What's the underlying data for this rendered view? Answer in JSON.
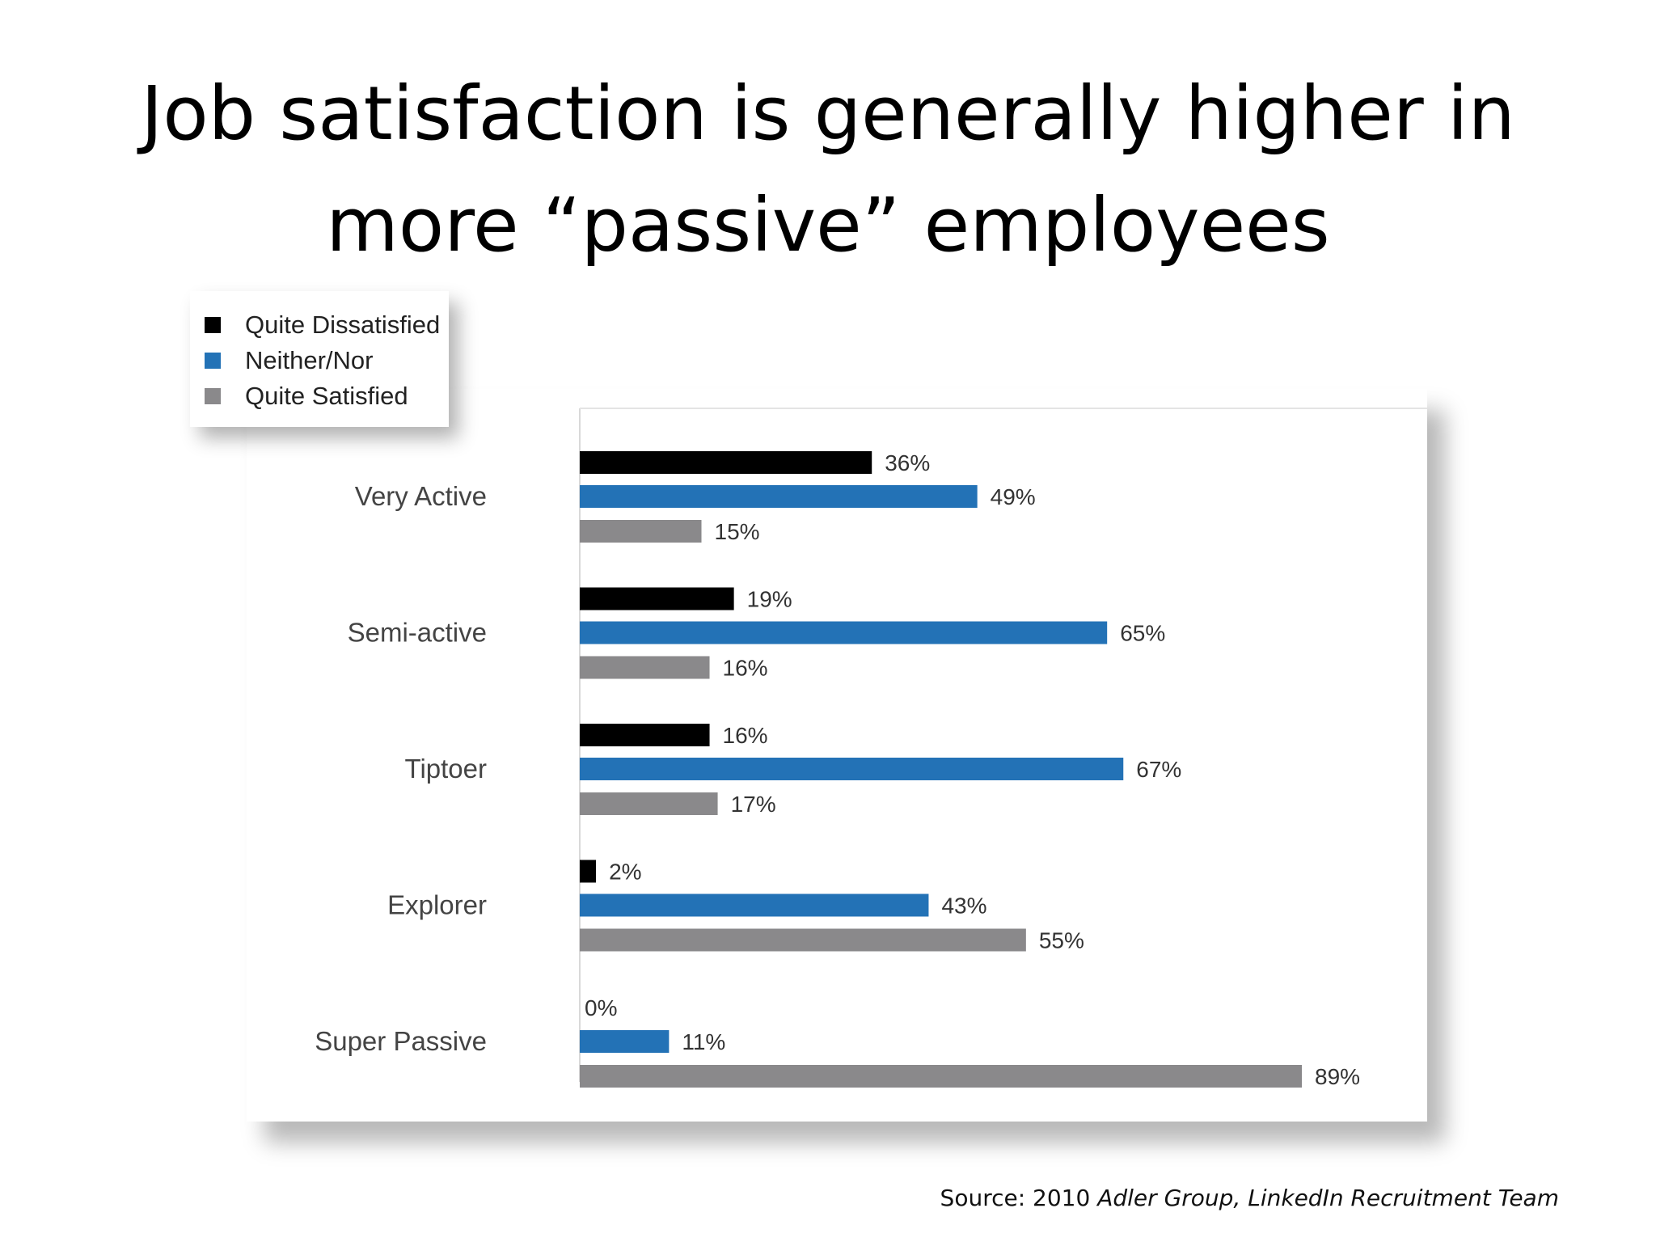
{
  "slide": {
    "title_line1": "Job satisfaction is generally higher in",
    "title_line2": "more “passive” employees",
    "source_prefix": "Source: 2010 ",
    "source_italic": "Adler Group, LinkedIn Recruitment Team"
  },
  "chart_data": {
    "type": "bar",
    "orientation": "horizontal",
    "categories": [
      "Very Active",
      "Semi-active",
      "Tiptoer",
      "Explorer",
      "Super Passive"
    ],
    "series": [
      {
        "name": "Quite Dissatisfied",
        "color": "#000000",
        "values": [
          36,
          19,
          16,
          2,
          0
        ],
        "labels": [
          "36%",
          "19%",
          "16%",
          "2%",
          "0%"
        ]
      },
      {
        "name": "Neither/Nor",
        "color": "#2372b6",
        "values": [
          49,
          65,
          67,
          43,
          11
        ],
        "labels": [
          "49%",
          "65%",
          "67%",
          "43%",
          "11%"
        ]
      },
      {
        "name": "Quite Satisfied",
        "color": "#8a898b",
        "values": [
          15,
          16,
          17,
          55,
          89
        ],
        "labels": [
          "15%",
          "16%",
          "17%",
          "55%",
          "89%"
        ]
      }
    ],
    "xlim": [
      0,
      100
    ],
    "unit": "%",
    "legend_position": "top-left",
    "grid": false
  }
}
